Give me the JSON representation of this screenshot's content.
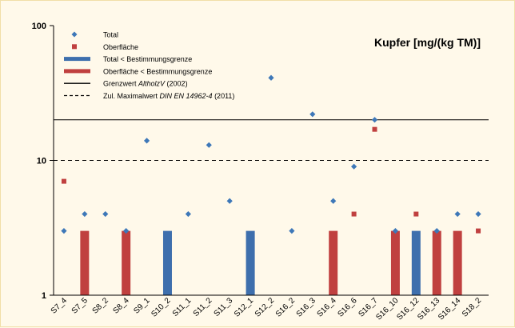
{
  "chart_data": {
    "type": "bar",
    "title": "Kupfer [mg/(kg TM)]",
    "y_scale": "log",
    "ylim": [
      1,
      100
    ],
    "y_ticks": [
      "1",
      "10",
      "100"
    ],
    "grid": false,
    "legend_position": "top-left",
    "categories": [
      "S7_4",
      "S7_5",
      "S8_2",
      "S8_4",
      "S9_1",
      "S10_2",
      "S11_1",
      "S11_2",
      "S11_3",
      "S12_1",
      "S12_2",
      "S16_2",
      "S16_3",
      "S16_4",
      "S16_6",
      "S16_7",
      "S16_10",
      "S16_12",
      "S16_13",
      "S16_14",
      "S18_2"
    ],
    "series": [
      {
        "name": "Total",
        "kind": "point",
        "marker": "diamond",
        "color": "#3e78b8",
        "values": [
          3,
          4,
          4,
          3,
          14,
          null,
          4,
          13,
          5,
          null,
          41,
          3,
          22,
          5,
          9,
          20,
          3,
          null,
          3,
          4,
          4
        ]
      },
      {
        "name": "Oberfläche",
        "kind": "point",
        "marker": "square",
        "color": "#c0403f",
        "values": [
          7,
          null,
          null,
          null,
          null,
          null,
          null,
          null,
          null,
          null,
          null,
          null,
          null,
          null,
          4,
          17,
          null,
          4,
          null,
          null,
          3
        ]
      },
      {
        "name": "Total < Bestimmungsgrenze",
        "kind": "bar",
        "color": "#3e6fad",
        "values": [
          null,
          null,
          null,
          null,
          null,
          3,
          null,
          null,
          null,
          3,
          null,
          null,
          null,
          null,
          null,
          null,
          null,
          3,
          null,
          null,
          null
        ]
      },
      {
        "name": "Oberfläche < Bestimmungsgrenze",
        "kind": "bar",
        "color": "#c0403f",
        "values": [
          null,
          3,
          null,
          3,
          null,
          null,
          null,
          null,
          null,
          null,
          null,
          null,
          null,
          3,
          null,
          null,
          3,
          null,
          3,
          3,
          null
        ]
      }
    ],
    "reference_lines": [
      {
        "label_pre": "Grenzwert ",
        "label_em": "AltholzV",
        "label_post": " (2002)",
        "value": 20,
        "style": "solid"
      },
      {
        "label_pre": "Zul. Maximalwert ",
        "label_em": "DIN EN 14962-4",
        "label_post": " (2011)",
        "value": 10,
        "style": "dashed"
      }
    ]
  }
}
